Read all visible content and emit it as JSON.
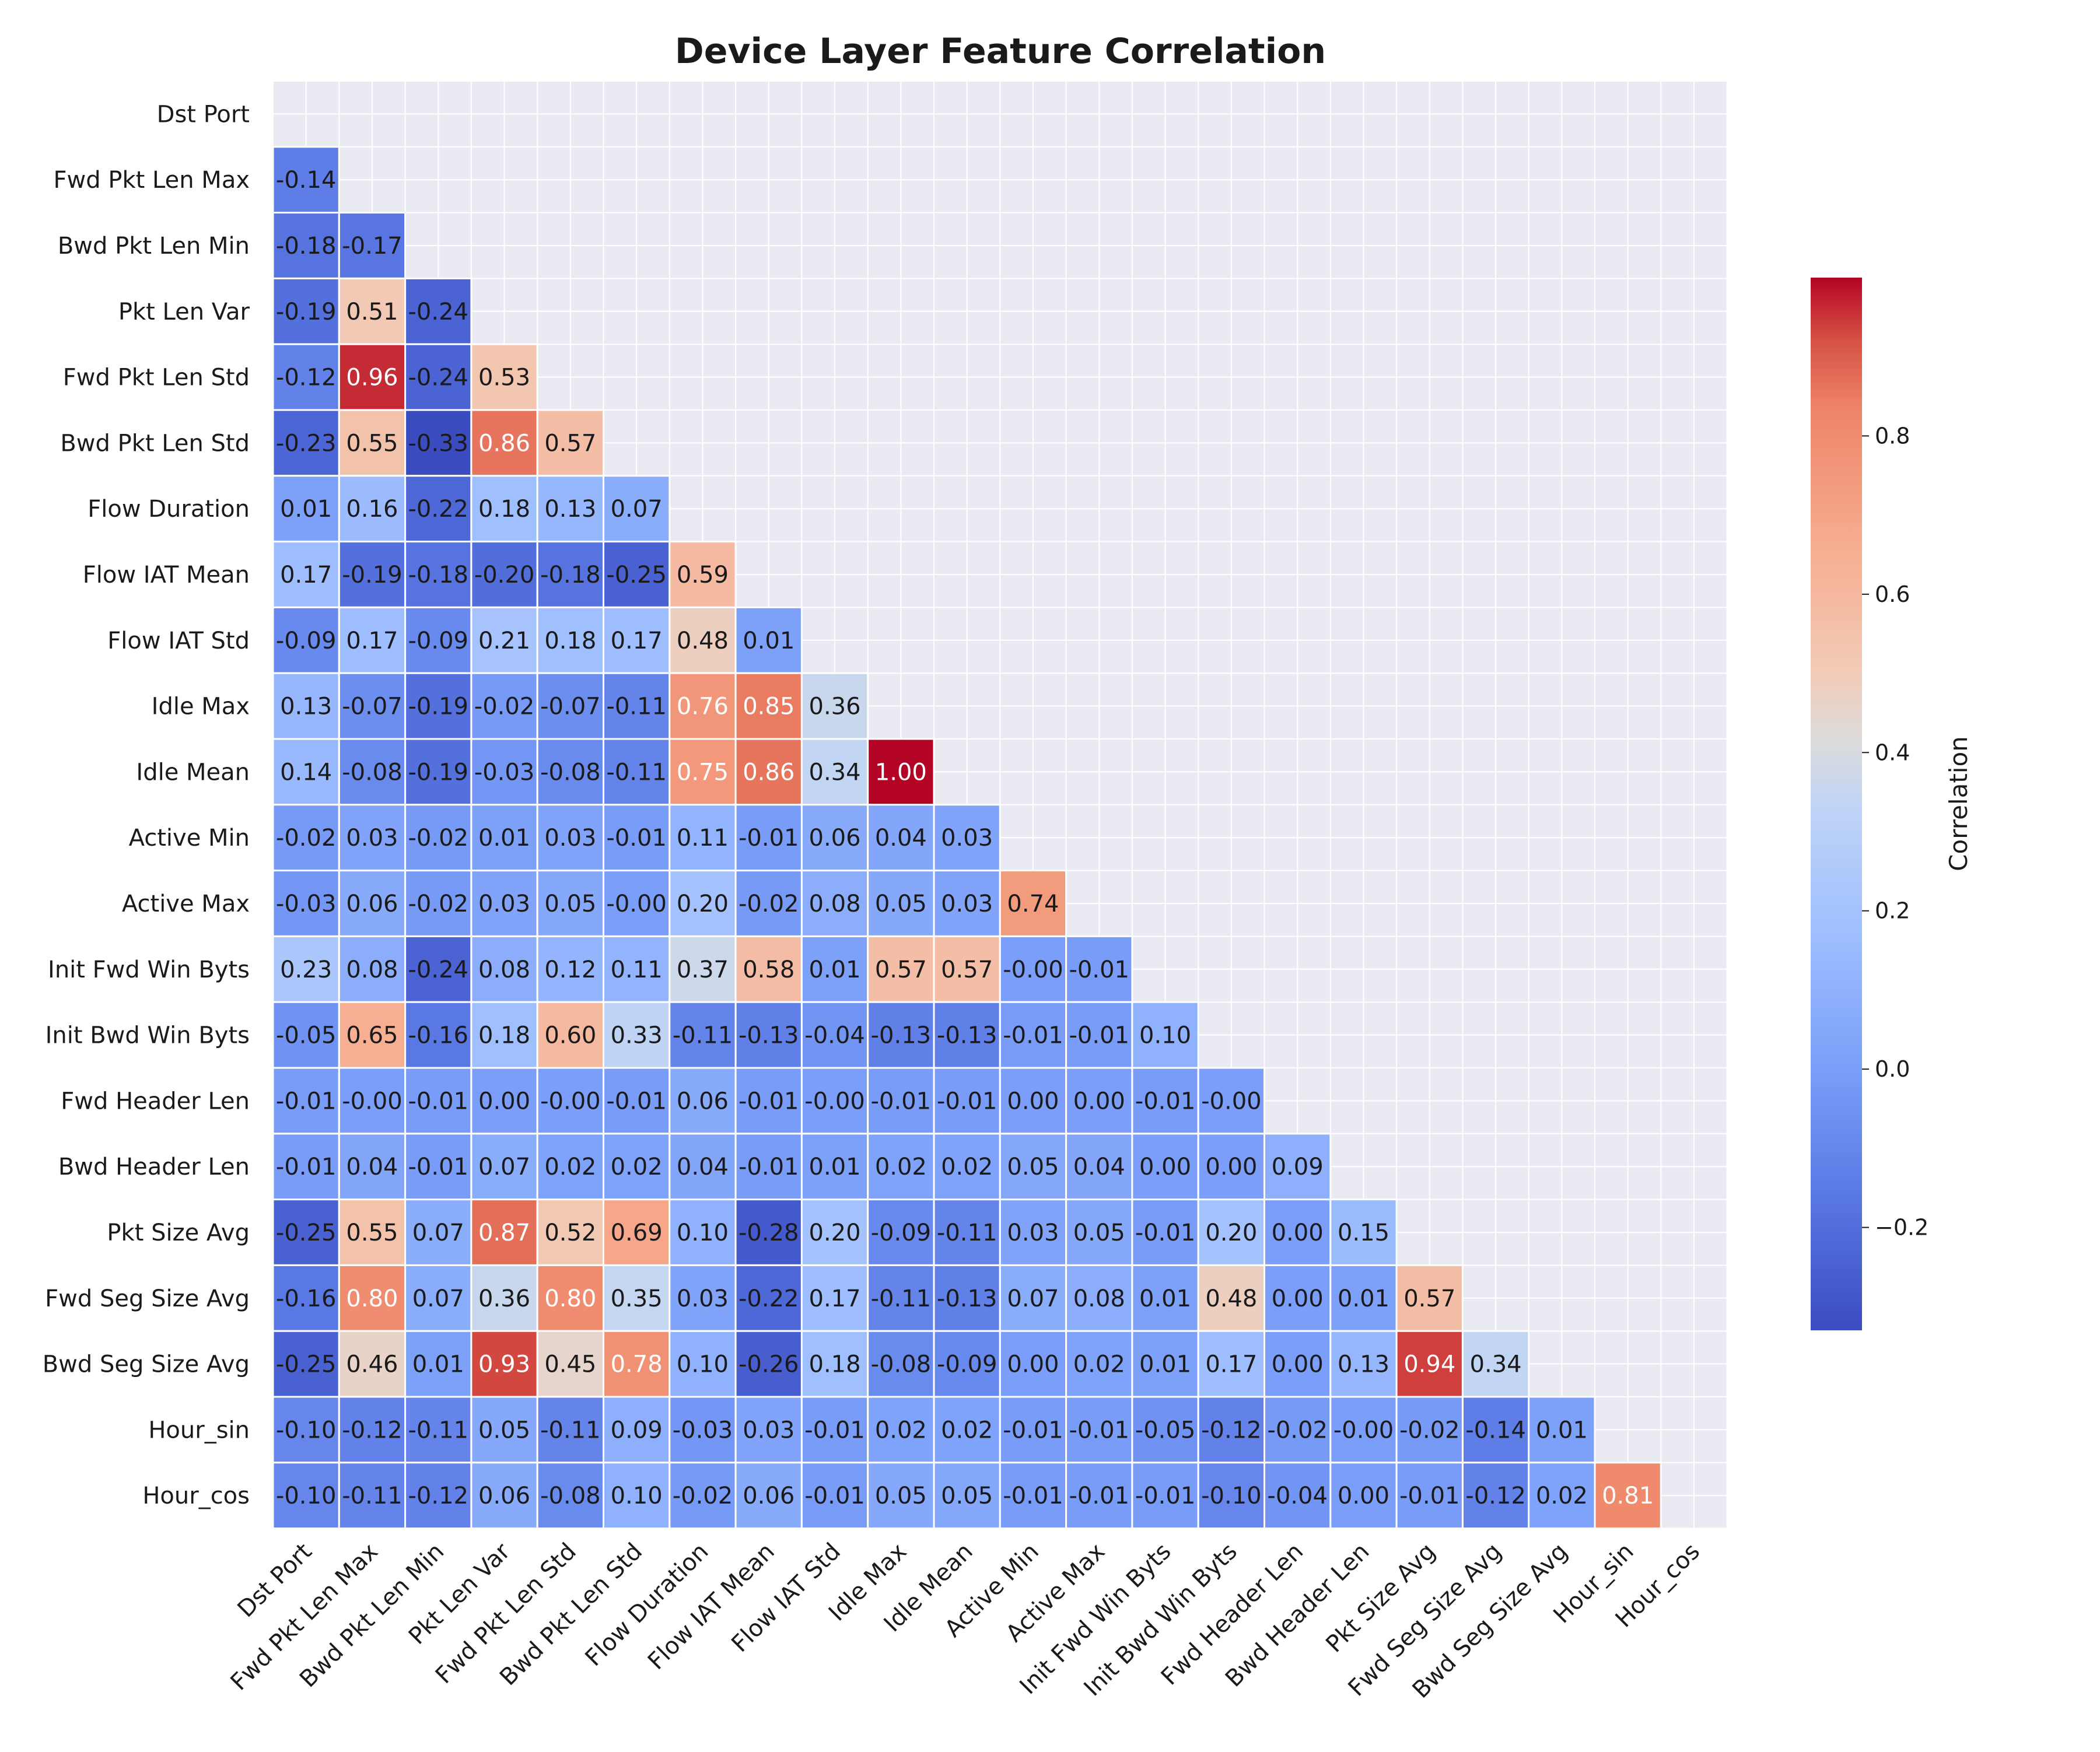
{
  "chart_data": {
    "type": "heatmap",
    "title": "Device Layer Feature Correlation",
    "labels": [
      "Dst Port",
      "Fwd Pkt Len Max",
      "Bwd Pkt Len Min",
      "Pkt Len Var",
      "Fwd Pkt Len Std",
      "Bwd Pkt Len Std",
      "Flow Duration",
      "Flow IAT Mean",
      "Flow IAT Std",
      "Idle Max",
      "Idle Mean",
      "Active Min",
      "Active Max",
      "Init Fwd Win Byts",
      "Init Bwd Win Byts",
      "Fwd Header Len",
      "Bwd Header Len",
      "Pkt Size Avg",
      "Fwd Seg Size Avg",
      "Bwd Seg Size Avg",
      "Hour_sin",
      "Hour_cos"
    ],
    "mask": "upper-triangle-including-diagonal",
    "lower_triangle": [
      [],
      [
        "-0.14"
      ],
      [
        "-0.18",
        "-0.17"
      ],
      [
        "-0.19",
        "0.51",
        "-0.24"
      ],
      [
        "-0.12",
        "0.96",
        "-0.24",
        "0.53"
      ],
      [
        "-0.23",
        "0.55",
        "-0.33",
        "0.86",
        "0.57"
      ],
      [
        "0.01",
        "0.16",
        "-0.22",
        "0.18",
        "0.13",
        "0.07"
      ],
      [
        "0.17",
        "-0.19",
        "-0.18",
        "-0.20",
        "-0.18",
        "-0.25",
        "0.59"
      ],
      [
        "-0.09",
        "0.17",
        "-0.09",
        "0.21",
        "0.18",
        "0.17",
        "0.48",
        "0.01"
      ],
      [
        "0.13",
        "-0.07",
        "-0.19",
        "-0.02",
        "-0.07",
        "-0.11",
        "0.76",
        "0.85",
        "0.36"
      ],
      [
        "0.14",
        "-0.08",
        "-0.19",
        "-0.03",
        "-0.08",
        "-0.11",
        "0.75",
        "0.86",
        "0.34",
        "1.00"
      ],
      [
        "-0.02",
        "0.03",
        "-0.02",
        "0.01",
        "0.03",
        "-0.01",
        "0.11",
        "-0.01",
        "0.06",
        "0.04",
        "0.03"
      ],
      [
        "-0.03",
        "0.06",
        "-0.02",
        "0.03",
        "0.05",
        "-0.00",
        "0.20",
        "-0.02",
        "0.08",
        "0.05",
        "0.03",
        "0.74"
      ],
      [
        "0.23",
        "0.08",
        "-0.24",
        "0.08",
        "0.12",
        "0.11",
        "0.37",
        "0.58",
        "0.01",
        "0.57",
        "0.57",
        "-0.00",
        "-0.01"
      ],
      [
        "-0.05",
        "0.65",
        "-0.16",
        "0.18",
        "0.60",
        "0.33",
        "-0.11",
        "-0.13",
        "-0.04",
        "-0.13",
        "-0.13",
        "-0.01",
        "-0.01",
        "0.10"
      ],
      [
        "-0.01",
        "-0.00",
        "-0.01",
        "0.00",
        "-0.00",
        "-0.01",
        "0.06",
        "-0.01",
        "-0.00",
        "-0.01",
        "-0.01",
        "0.00",
        "0.00",
        "-0.01",
        "-0.00"
      ],
      [
        "-0.01",
        "0.04",
        "-0.01",
        "0.07",
        "0.02",
        "0.02",
        "0.04",
        "-0.01",
        "0.01",
        "0.02",
        "0.02",
        "0.05",
        "0.04",
        "0.00",
        "0.00",
        "0.09"
      ],
      [
        "-0.25",
        "0.55",
        "0.07",
        "0.87",
        "0.52",
        "0.69",
        "0.10",
        "-0.28",
        "0.20",
        "-0.09",
        "-0.11",
        "0.03",
        "0.05",
        "-0.01",
        "0.20",
        "0.00",
        "0.15"
      ],
      [
        "-0.16",
        "0.80",
        "0.07",
        "0.36",
        "0.80",
        "0.35",
        "0.03",
        "-0.22",
        "0.17",
        "-0.11",
        "-0.13",
        "0.07",
        "0.08",
        "0.01",
        "0.48",
        "0.00",
        "0.01",
        "0.57"
      ],
      [
        "-0.25",
        "0.46",
        "0.01",
        "0.93",
        "0.45",
        "0.78",
        "0.10",
        "-0.26",
        "0.18",
        "-0.08",
        "-0.09",
        "0.00",
        "0.02",
        "0.01",
        "0.17",
        "0.00",
        "0.13",
        "0.94",
        "0.34"
      ],
      [
        "-0.10",
        "-0.12",
        "-0.11",
        "0.05",
        "-0.11",
        "0.09",
        "-0.03",
        "0.03",
        "-0.01",
        "0.02",
        "0.02",
        "-0.01",
        "-0.01",
        "-0.05",
        "-0.12",
        "-0.02",
        "-0.00",
        "-0.02",
        "-0.14",
        "0.01"
      ],
      [
        "-0.10",
        "-0.11",
        "-0.12",
        "0.06",
        "-0.08",
        "0.10",
        "-0.02",
        "0.06",
        "-0.01",
        "0.05",
        "0.05",
        "-0.01",
        "-0.01",
        "-0.01",
        "-0.10",
        "-0.04",
        "0.00",
        "-0.01",
        "-0.12",
        "0.02",
        "0.81"
      ]
    ],
    "colormap": "coolwarm",
    "colorbar": {
      "label": "Correlation",
      "range": [
        -0.33,
        1.0
      ],
      "ticks": [
        -0.2,
        0.0,
        0.2,
        0.4,
        0.6,
        0.8
      ],
      "tick_labels": [
        "−0.2",
        "0.0",
        "0.2",
        "0.4",
        "0.6",
        "0.8"
      ]
    },
    "grid": true
  }
}
